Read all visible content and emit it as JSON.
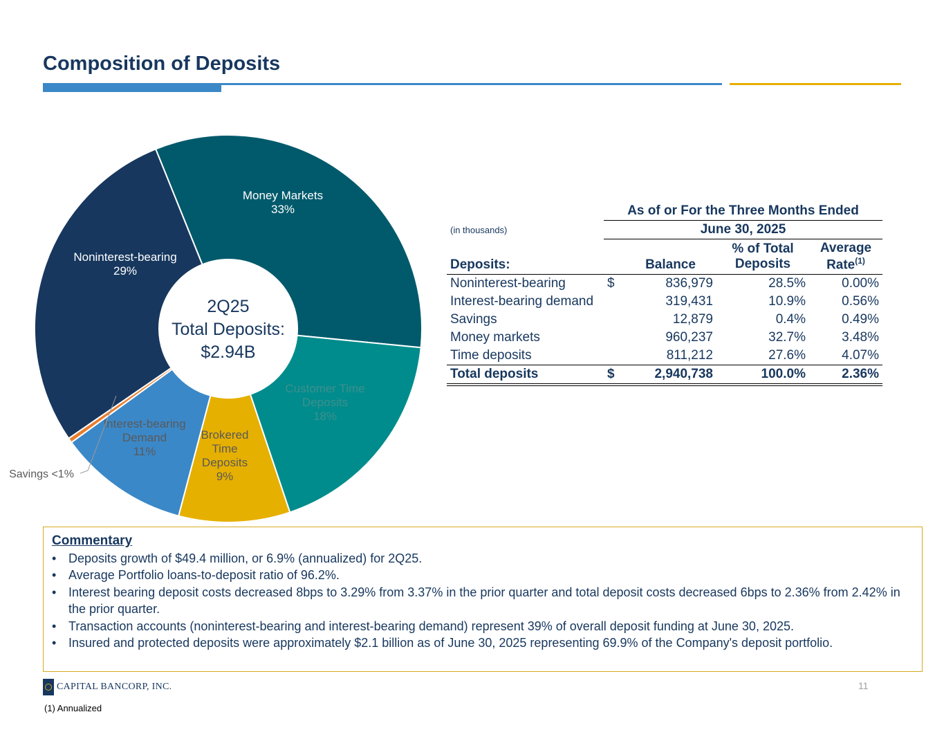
{
  "title": "Composition of Deposits",
  "colors": {
    "navy": "#17375e",
    "gold": "#e6b000",
    "blue": "#3b88c8",
    "teal_dark": "#005a6b",
    "teal": "#008c8c",
    "orange": "#e97d2e"
  },
  "chart_data": {
    "type": "pie",
    "variant": "donut",
    "center_text": [
      "2Q25",
      "Total Deposits:",
      "$2.94B"
    ],
    "slices": [
      {
        "name": "Money Markets",
        "label": [
          "Money Markets",
          "33%"
        ],
        "value": 32.7,
        "color": "#005a6b"
      },
      {
        "name": "Customer Time Deposits",
        "label": [
          "Customer Time",
          "Deposits",
          "18%"
        ],
        "value": 18.3,
        "color": "#008c8c"
      },
      {
        "name": "Brokered Time Deposits",
        "label": [
          "Brokered",
          "Time",
          "Deposits",
          "9%"
        ],
        "value": 9.3,
        "color": "#e6b000"
      },
      {
        "name": "Interest-bearing Demand",
        "label": [
          "Interest-bearing",
          "Demand",
          "11%"
        ],
        "value": 10.9,
        "color": "#3b88c8"
      },
      {
        "name": "Savings",
        "label": [
          "Savings <1%"
        ],
        "value": 0.4,
        "color": "#e97d2e"
      },
      {
        "name": "Noninterest-bearing",
        "label": [
          "Noninterest-bearing",
          "29%"
        ],
        "value": 28.5,
        "color": "#17375e"
      }
    ]
  },
  "table": {
    "header_top": "As of or For the Three Months Ended",
    "header_date": "June 30, 2025",
    "units_note": "(in thousands)",
    "col_deposits": "Deposits:",
    "col_balance": "Balance",
    "col_pct_line1": "% of Total",
    "col_pct_line2": "Deposits",
    "col_rate_line1": "Average",
    "col_rate_line2": "Rate",
    "col_rate_sup": "(1)",
    "rows": [
      {
        "label": "Noninterest-bearing",
        "dollar": "$",
        "balance": "836,979",
        "pct": "28.5%",
        "rate": "0.00%"
      },
      {
        "label": "Interest-bearing demand",
        "dollar": "",
        "balance": "319,431",
        "pct": "10.9%",
        "rate": "0.56%"
      },
      {
        "label": "Savings",
        "dollar": "",
        "balance": "12,879",
        "pct": "0.4%",
        "rate": "0.49%"
      },
      {
        "label": "Money markets",
        "dollar": "",
        "balance": "960,237",
        "pct": "32.7%",
        "rate": "3.48%"
      },
      {
        "label": "Time deposits",
        "dollar": "",
        "balance": "811,212",
        "pct": "27.6%",
        "rate": "4.07%"
      }
    ],
    "total": {
      "label": "Total deposits",
      "dollar": "$",
      "balance": "2,940,738",
      "pct": "100.0%",
      "rate": "2.36%"
    }
  },
  "commentary": {
    "heading": "Commentary",
    "bullets": [
      "Deposits growth of $49.4 million, or 6.9% (annualized) for 2Q25.",
      "Average Portfolio loans-to-deposit ratio of 96.2%.",
      "Interest bearing deposit costs decreased 8bps to 3.29% from 3.37% in the prior quarter and total deposit costs decreased 6bps to 2.36% from 2.42% in the prior quarter.",
      "Transaction accounts (noninterest-bearing and interest-bearing demand) represent 39% of overall deposit funding at June 30, 2025.",
      "Insured and protected deposits were approximately $2.1 billion as of June 30, 2025 representing 69.9% of the Company's deposit portfolio."
    ]
  },
  "footer": {
    "logo_text": "CAPITAL BANCORP, INC.",
    "page_number": "11",
    "footnote": "(1) Annualized"
  }
}
